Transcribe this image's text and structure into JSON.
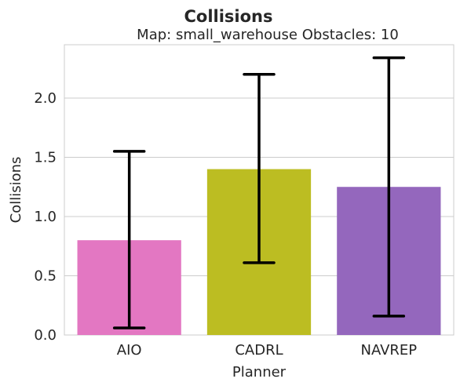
{
  "chart_data": {
    "type": "bar",
    "title": "Collisions",
    "subtitle": "Map: small_warehouse Obstacles: 10",
    "xlabel": "Planner",
    "ylabel": "Collisions",
    "categories": [
      "AIO",
      "CADRL",
      "NAVREP"
    ],
    "values": [
      0.8,
      1.4,
      1.25
    ],
    "error_low": [
      0.06,
      0.61,
      0.16
    ],
    "error_high": [
      1.55,
      2.2,
      2.34
    ],
    "colors": [
      "#e377c2",
      "#bcbd22",
      "#9467bd"
    ],
    "ylim": [
      0,
      2.45
    ],
    "yticks": [
      0.0,
      0.5,
      1.0,
      1.5,
      2.0
    ],
    "ytick_labels": [
      "0.0",
      "0.5",
      "1.0",
      "1.5",
      "2.0"
    ],
    "grid": "horizontal",
    "legend": "none"
  }
}
